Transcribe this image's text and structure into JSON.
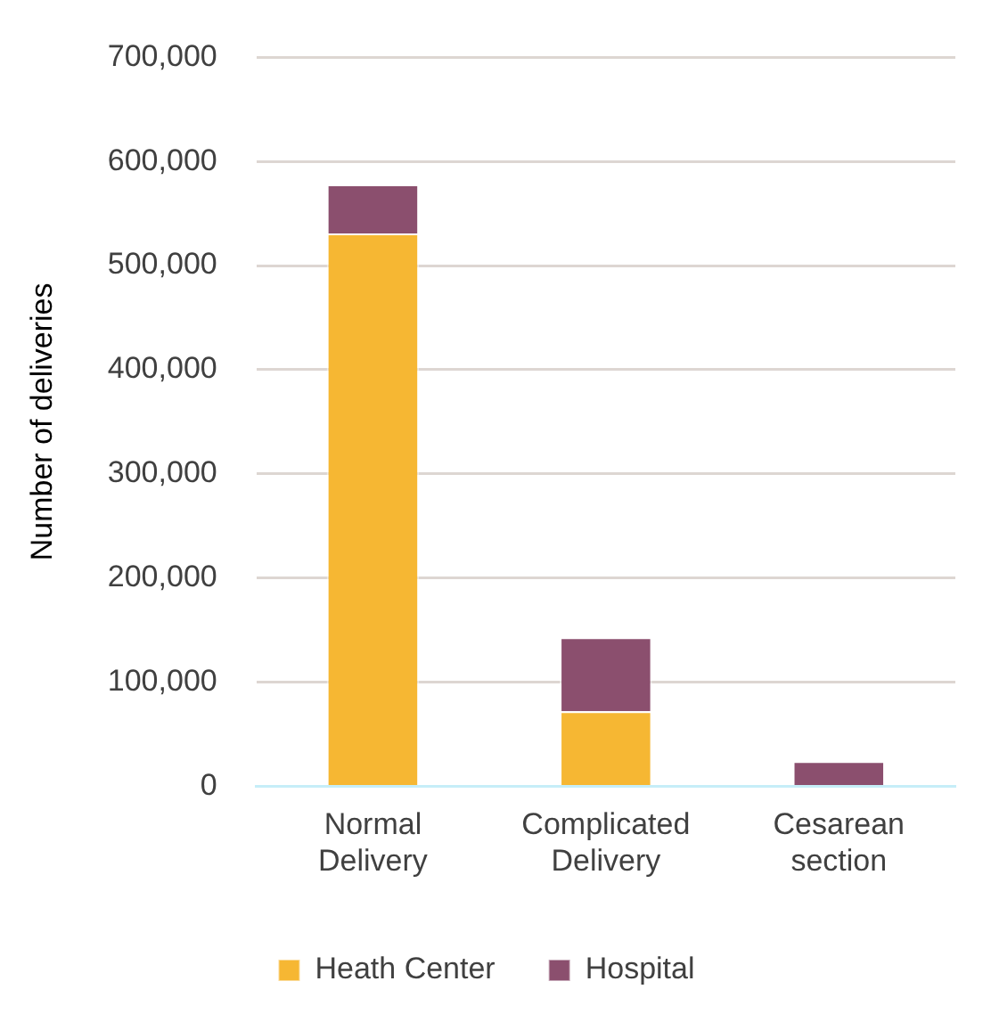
{
  "chart_data": {
    "type": "bar",
    "stacked": true,
    "ylabel": "Number of deliveries",
    "categories": [
      "Normal Delivery",
      "Complicated Delivery",
      "Cesarean section"
    ],
    "series": [
      {
        "name": "Heath Center",
        "color": "#f6b733",
        "values": [
          531000,
          72000,
          0
        ]
      },
      {
        "name": "Hospital",
        "color": "#8b4f6e",
        "values": [
          47000,
          71000,
          24000
        ]
      }
    ],
    "ylim": [
      0,
      700000
    ],
    "yticks": [
      0,
      {
        "value": 100000,
        "label": "100,000"
      },
      {
        "value": 200000,
        "label": "200,000"
      },
      {
        "value": 300000,
        "label": "300,000"
      },
      {
        "value": 400000,
        "label": "400,000"
      },
      {
        "value": 500000,
        "label": "500,000"
      },
      {
        "value": 600000,
        "label": "600,000"
      },
      {
        "value": 700000,
        "label": "700,000"
      }
    ],
    "grid": "y",
    "legend": "bottom"
  }
}
